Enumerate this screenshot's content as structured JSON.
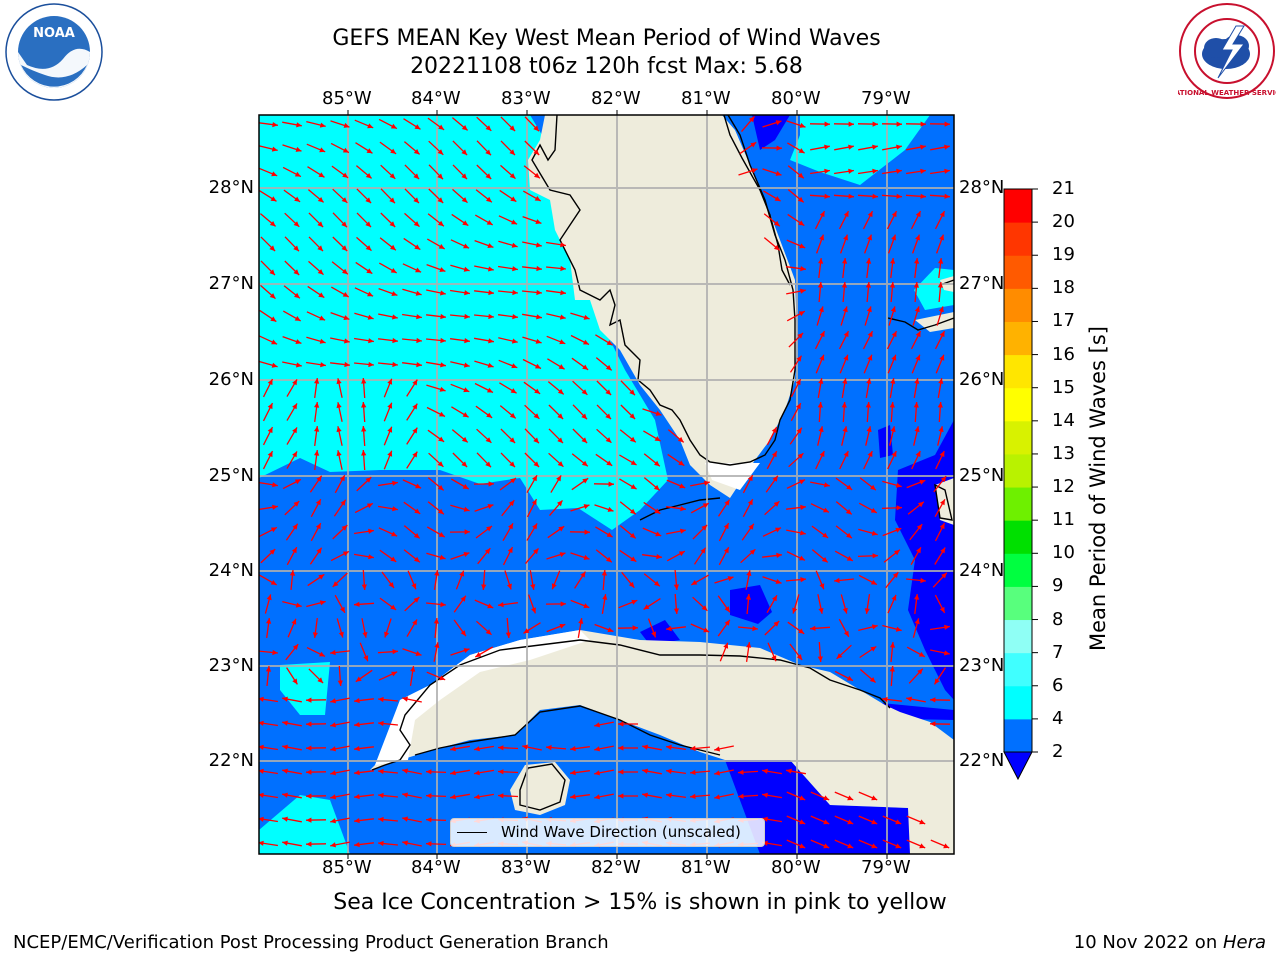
{
  "title": {
    "line1": "GEFS MEAN Key West Mean Period of Wind Waves",
    "line2": "20221108 t06z 120h fcst   Max: 5.68"
  },
  "map": {
    "lon_labels": [
      "85°W",
      "84°W",
      "83°W",
      "82°W",
      "81°W",
      "80°W",
      "79°W"
    ],
    "lat_labels": [
      "28°N",
      "27°N",
      "26°N",
      "25°N",
      "24°N",
      "23°N",
      "22°N"
    ],
    "extent": {
      "lon": [
        -86.0,
        -78.3
      ],
      "lat": [
        21.1,
        28.75
      ]
    },
    "gridlines": true,
    "land_color": "#eeecdc",
    "coastline_color": "#000000",
    "arrow_color": "#ff0000",
    "legend": {
      "label": "Wind Wave Direction (unscaled)",
      "placement": "lower center"
    }
  },
  "colorbar": {
    "label": "Mean Period of Wind Waves [s]",
    "ticks": [
      "2",
      "4",
      "6",
      "7",
      "8",
      "9",
      "10",
      "11",
      "12",
      "13",
      "14",
      "15",
      "16",
      "17",
      "18",
      "19",
      "20",
      "21"
    ],
    "colors": [
      "#0070ff",
      "#00ffff",
      "#40ffff",
      "#8ffff5",
      "#58ff7d",
      "#00ff40",
      "#00e000",
      "#6ef000",
      "#b9f200",
      "#d8f200",
      "#ffff00",
      "#ffe600",
      "#ffb200",
      "#ff8c00",
      "#ff5a00",
      "#ff3600",
      "#ff0000"
    ],
    "extend_under_color": "#0000ff"
  },
  "subcaption": "Sea Ice Concentration > 15% is shown in pink to yellow",
  "footer": {
    "left": "NCEP/EMC/Verification Post Processing Product Generation Branch",
    "right_date": "10 Nov 2022 on ",
    "right_host": "Hera"
  },
  "logos": {
    "left_text": "NOAA",
    "right_text": "NATIONAL WEATHER SERVICE"
  }
}
